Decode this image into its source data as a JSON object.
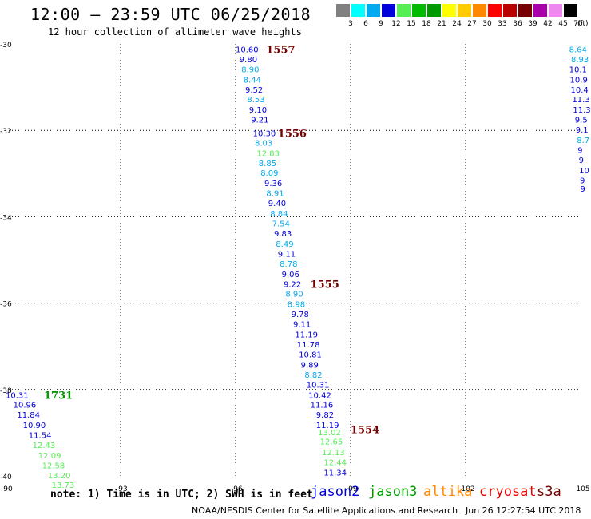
{
  "title": "12:00 – 23:59 UTC 06/25/2018",
  "subtitle": "12 hour collection of altimeter wave heights",
  "legend": {
    "labels": [
      "3",
      "6",
      "9",
      "12",
      "15",
      "18",
      "21",
      "24",
      "27",
      "30",
      "33",
      "36",
      "39",
      "42",
      "45",
      "70"
    ],
    "unit": "(ft)",
    "colors": [
      "#808080",
      "#00ffff",
      "#00aaee",
      "#0000dd",
      "#55ee55",
      "#00bb00",
      "#009900",
      "#ffff00",
      "#ffcc00",
      "#ff8800",
      "#ff0000",
      "#bb0000",
      "#770000",
      "#aa00aa",
      "#ee88ee",
      "#000000"
    ]
  },
  "note": "note:  1) Time is in UTC; 2) SWH is in feet",
  "satellites": [
    {
      "name": "jason2",
      "color": "#0000dd"
    },
    {
      "name": "jason3",
      "color": "#009900"
    },
    {
      "name": "altika",
      "color": "#ff8800"
    },
    {
      "name": "cryosat",
      "color": "#ee0000"
    },
    {
      "name": "s3a",
      "color": "#770000"
    }
  ],
  "footer": "NOAA/NESDIS Center for Satellite Applications and Research",
  "timestamp": "Jun 26 12:27:54 UTC 2018",
  "chart_data": {
    "type": "scatter",
    "x_ticks": [
      "90",
      "93",
      "96",
      "99",
      "102",
      "105"
    ],
    "y_ticks": [
      "-30",
      "-32",
      "-34",
      "-36",
      "-38",
      "-40"
    ],
    "xlim": [
      90,
      105
    ],
    "ylim": [
      -40,
      -30
    ],
    "tracks": [
      {
        "time_label": "1557",
        "color": "#770000",
        "label_x": 96.8,
        "label_y": -30.12,
        "points": [
          {
            "x": 96.0,
            "y": -30.12,
            "v": "10.60"
          },
          {
            "x": 96.1,
            "y": -30.35,
            "v": "9.80"
          },
          {
            "x": 96.15,
            "y": -30.58,
            "v": "8.90"
          },
          {
            "x": 96.2,
            "y": -30.82,
            "v": "8.44"
          },
          {
            "x": 96.25,
            "y": -31.05,
            "v": "9.52"
          },
          {
            "x": 96.3,
            "y": -31.28,
            "v": "8.53"
          },
          {
            "x": 96.35,
            "y": -31.52,
            "v": "9.10"
          },
          {
            "x": 96.4,
            "y": -31.75,
            "v": "9.21"
          }
        ]
      },
      {
        "time_label": "1556",
        "color": "#770000",
        "label_x": 97.1,
        "label_y": -32.06,
        "points": [
          {
            "x": 96.45,
            "y": -32.06,
            "v": "10.30"
          },
          {
            "x": 96.5,
            "y": -32.28,
            "v": "8.03"
          },
          {
            "x": 96.55,
            "y": -32.52,
            "v": "12.83"
          },
          {
            "x": 96.6,
            "y": -32.75,
            "v": "8.85"
          },
          {
            "x": 96.65,
            "y": -32.98,
            "v": "8.09"
          },
          {
            "x": 96.75,
            "y": -33.22,
            "v": "9.36"
          },
          {
            "x": 96.8,
            "y": -33.45,
            "v": "8.91"
          },
          {
            "x": 96.85,
            "y": -33.68,
            "v": "9.40"
          },
          {
            "x": 96.9,
            "y": -33.92,
            "v": "8.84"
          },
          {
            "x": 96.95,
            "y": -34.15,
            "v": "7.54"
          },
          {
            "x": 97.0,
            "y": -34.38,
            "v": "9.83"
          },
          {
            "x": 97.05,
            "y": -34.62,
            "v": "8.49"
          },
          {
            "x": 97.1,
            "y": -34.85,
            "v": "9.11"
          },
          {
            "x": 97.15,
            "y": -35.08,
            "v": "8.78"
          },
          {
            "x": 97.2,
            "y": -35.32,
            "v": "9.06"
          }
        ]
      },
      {
        "time_label": "1555",
        "color": "#770000",
        "label_x": 97.95,
        "label_y": -35.55,
        "points": [
          {
            "x": 97.25,
            "y": -35.55,
            "v": "9.22"
          },
          {
            "x": 97.3,
            "y": -35.78,
            "v": "8.90"
          },
          {
            "x": 97.35,
            "y": -36.02,
            "v": "8.98"
          },
          {
            "x": 97.45,
            "y": -36.25,
            "v": "9.78"
          },
          {
            "x": 97.5,
            "y": -36.48,
            "v": "9.11"
          },
          {
            "x": 97.55,
            "y": -36.72,
            "v": "11.19"
          },
          {
            "x": 97.6,
            "y": -36.95,
            "v": "11.78"
          },
          {
            "x": 97.65,
            "y": -37.18,
            "v": "10.81"
          },
          {
            "x": 97.7,
            "y": -37.42,
            "v": "9.89"
          },
          {
            "x": 97.8,
            "y": -37.65,
            "v": "8.82"
          },
          {
            "x": 97.85,
            "y": -37.88,
            "v": "10.31"
          },
          {
            "x": 97.9,
            "y": -38.12,
            "v": "10.42"
          },
          {
            "x": 97.95,
            "y": -38.35,
            "v": "11.16"
          },
          {
            "x": 98.1,
            "y": -38.58,
            "v": "9.82"
          }
        ]
      },
      {
        "time_label": "1554",
        "color": "#770000",
        "label_x": 99.0,
        "label_y": -38.92,
        "points": [
          {
            "x": 98.1,
            "y": -38.82,
            "v": "11.19"
          },
          {
            "x": 98.15,
            "y": -38.98,
            "v": "13.02"
          },
          {
            "x": 98.2,
            "y": -39.2,
            "v": "12.65"
          },
          {
            "x": 98.25,
            "y": -39.45,
            "v": "12.13"
          },
          {
            "x": 98.3,
            "y": -39.68,
            "v": "12.44"
          },
          {
            "x": 98.3,
            "y": -39.92,
            "v": "11.34"
          }
        ]
      },
      {
        "time_label": "1731",
        "color": "#009900",
        "label_x": 91.0,
        "label_y": -38.12,
        "points": [
          {
            "x": 90.0,
            "y": -38.12,
            "v": "10.31"
          },
          {
            "x": 90.2,
            "y": -38.35,
            "v": "10.96"
          },
          {
            "x": 90.3,
            "y": -38.58,
            "v": "11.84"
          },
          {
            "x": 90.45,
            "y": -38.82,
            "v": "10.90"
          },
          {
            "x": 90.6,
            "y": -39.05,
            "v": "11.54"
          },
          {
            "x": 90.7,
            "y": -39.28,
            "v": "12.43"
          },
          {
            "x": 90.85,
            "y": -39.52,
            "v": "12.09"
          },
          {
            "x": 90.95,
            "y": -39.75,
            "v": "12.58"
          },
          {
            "x": 91.1,
            "y": -39.98,
            "v": "13.20"
          },
          {
            "x": 91.2,
            "y": -40.2,
            "v": "13.73"
          }
        ]
      },
      {
        "time_label": "",
        "color": "#0000dd",
        "label_x": null,
        "label_y": null,
        "points": [
          {
            "x": 104.7,
            "y": -30.12,
            "v": "8.64"
          },
          {
            "x": 104.75,
            "y": -30.35,
            "v": "8.93"
          },
          {
            "x": 104.7,
            "y": -30.58,
            "v": "10.1"
          },
          {
            "x": 104.72,
            "y": -30.82,
            "v": "10.9"
          },
          {
            "x": 104.74,
            "y": -31.05,
            "v": "10.4"
          },
          {
            "x": 104.78,
            "y": -31.28,
            "v": "11.3"
          },
          {
            "x": 104.8,
            "y": -31.52,
            "v": "11.3"
          },
          {
            "x": 104.85,
            "y": -31.75,
            "v": "9.5"
          },
          {
            "x": 104.87,
            "y": -31.98,
            "v": "9.1"
          },
          {
            "x": 104.9,
            "y": -32.22,
            "v": "8.7"
          },
          {
            "x": 104.92,
            "y": -32.45,
            "v": "9"
          },
          {
            "x": 104.95,
            "y": -32.68,
            "v": "9"
          },
          {
            "x": 104.96,
            "y": -32.92,
            "v": "10"
          },
          {
            "x": 104.98,
            "y": -33.15,
            "v": "9"
          },
          {
            "x": 104.99,
            "y": -33.35,
            "v": "9"
          }
        ]
      }
    ]
  }
}
